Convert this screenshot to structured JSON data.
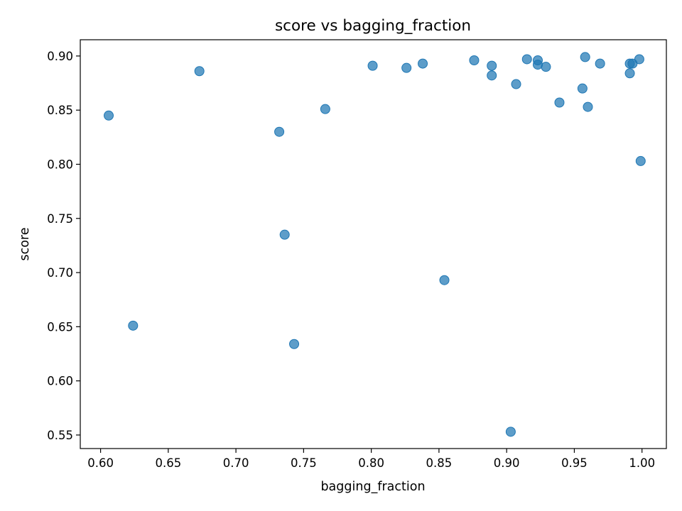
{
  "chart_data": {
    "type": "scatter",
    "title": "score vs bagging_fraction",
    "xlabel": "bagging_fraction",
    "ylabel": "score",
    "xlim": [
      0.585,
      1.018
    ],
    "ylim": [
      0.5375,
      0.915
    ],
    "xticks": [
      "0.60",
      "0.65",
      "0.70",
      "0.75",
      "0.80",
      "0.85",
      "0.90",
      "0.95",
      "1.00"
    ],
    "yticks": [
      "0.55",
      "0.60",
      "0.65",
      "0.70",
      "0.75",
      "0.80",
      "0.85",
      "0.90"
    ],
    "grid": false,
    "marker_color": "#1f77b4",
    "points": [
      {
        "x": 0.606,
        "y": 0.845
      },
      {
        "x": 0.624,
        "y": 0.651
      },
      {
        "x": 0.673,
        "y": 0.886
      },
      {
        "x": 0.732,
        "y": 0.83
      },
      {
        "x": 0.736,
        "y": 0.735
      },
      {
        "x": 0.743,
        "y": 0.634
      },
      {
        "x": 0.766,
        "y": 0.851
      },
      {
        "x": 0.801,
        "y": 0.891
      },
      {
        "x": 0.826,
        "y": 0.889
      },
      {
        "x": 0.838,
        "y": 0.893
      },
      {
        "x": 0.854,
        "y": 0.693
      },
      {
        "x": 0.876,
        "y": 0.896
      },
      {
        "x": 0.889,
        "y": 0.891
      },
      {
        "x": 0.889,
        "y": 0.882
      },
      {
        "x": 0.903,
        "y": 0.553
      },
      {
        "x": 0.907,
        "y": 0.874
      },
      {
        "x": 0.915,
        "y": 0.897
      },
      {
        "x": 0.923,
        "y": 0.896
      },
      {
        "x": 0.923,
        "y": 0.892
      },
      {
        "x": 0.929,
        "y": 0.89
      },
      {
        "x": 0.939,
        "y": 0.857
      },
      {
        "x": 0.956,
        "y": 0.87
      },
      {
        "x": 0.958,
        "y": 0.899
      },
      {
        "x": 0.96,
        "y": 0.853
      },
      {
        "x": 0.969,
        "y": 0.893
      },
      {
        "x": 0.991,
        "y": 0.893
      },
      {
        "x": 0.991,
        "y": 0.884
      },
      {
        "x": 0.993,
        "y": 0.893
      },
      {
        "x": 0.998,
        "y": 0.897
      },
      {
        "x": 0.999,
        "y": 0.803
      }
    ]
  }
}
